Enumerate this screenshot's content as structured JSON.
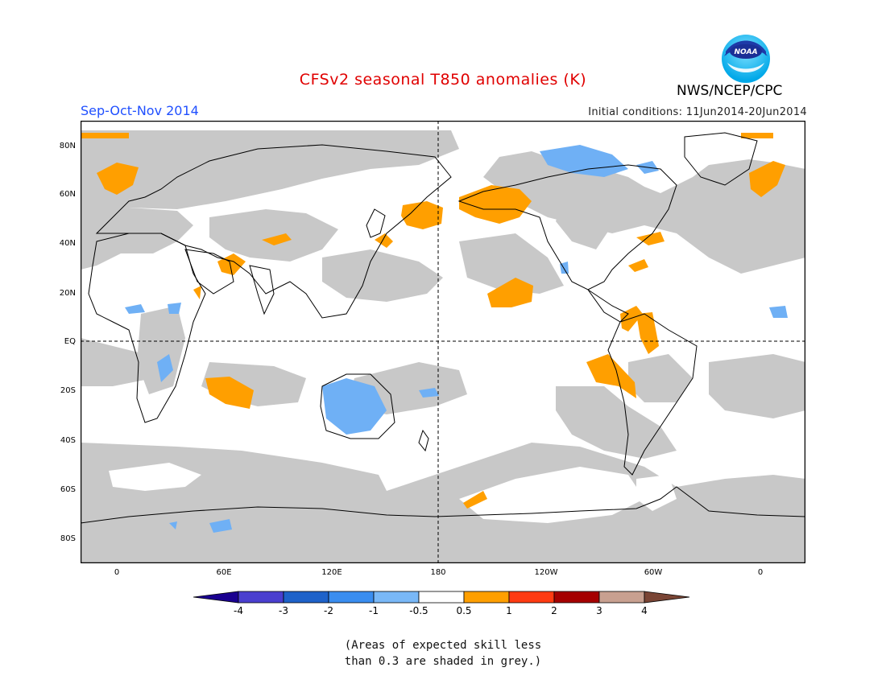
{
  "header": {
    "title": "CFSv2 seasonal T850 anomalies (K)",
    "season": "Sep-Oct-Nov 2014",
    "initial_conditions": "Initial conditions: 11Jun2014-20Jun2014",
    "agency": "NWS/NCEP/CPC",
    "logo_text": "NOAA"
  },
  "map": {
    "lat_labels": [
      "80N",
      "60N",
      "40N",
      "20N",
      "EQ",
      "20S",
      "40S",
      "60S",
      "80S"
    ],
    "lon_labels": [
      "0",
      "60E",
      "120E",
      "180",
      "120W",
      "60W",
      "0"
    ],
    "colors": {
      "grey_low_skill": "#c8c8c8",
      "warm_anomaly": "#ff9f00",
      "cold_anomaly": "#6fb0f5",
      "land_outline": "#000000"
    }
  },
  "legend": {
    "ticks": [
      "-4",
      "-3",
      "-2",
      "-1",
      "-0.5",
      "0.5",
      "1",
      "2",
      "3",
      "4"
    ],
    "colors": [
      "#1a0090",
      "#4a3fcf",
      "#1e62c9",
      "#3a8df0",
      "#79b8f7",
      "#ffffff",
      "#ff9f00",
      "#ff3b12",
      "#a50000",
      "#c8a090",
      "#7a4535"
    ]
  },
  "note": {
    "line1": "(Areas of expected skill less",
    "line2": "than 0.3 are shaded in grey.)"
  }
}
